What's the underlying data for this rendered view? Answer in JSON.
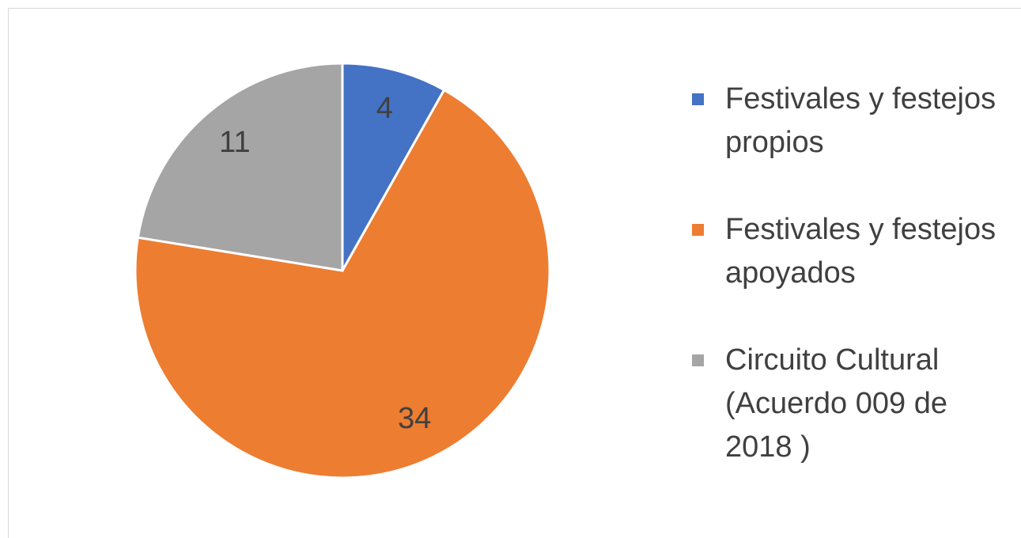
{
  "chart_data": {
    "type": "pie",
    "categories": [
      "Festivales y festejos propios",
      "Festivales y festejos apoyados",
      "Circuito Cultural (Acuerdo 009 de 2018 )"
    ],
    "values": [
      4,
      34,
      11
    ],
    "colors": [
      "#4472c4",
      "#ed7d31",
      "#a5a5a5"
    ],
    "legend": "right"
  }
}
